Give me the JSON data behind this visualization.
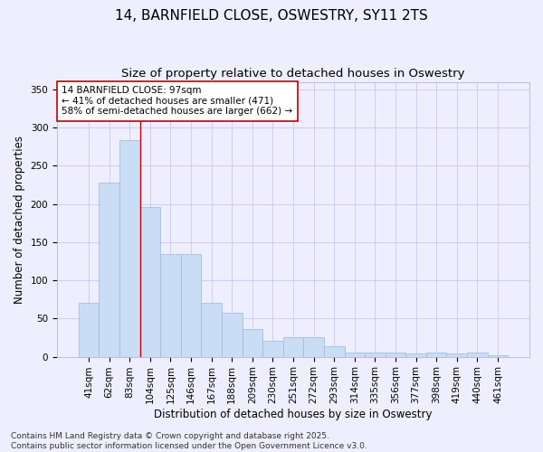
{
  "title": "14, BARNFIELD CLOSE, OSWESTRY, SY11 2TS",
  "subtitle": "Size of property relative to detached houses in Oswestry",
  "xlabel": "Distribution of detached houses by size in Oswestry",
  "ylabel": "Number of detached properties",
  "categories": [
    "41sqm",
    "62sqm",
    "83sqm",
    "104sqm",
    "125sqm",
    "146sqm",
    "167sqm",
    "188sqm",
    "209sqm",
    "230sqm",
    "251sqm",
    "272sqm",
    "293sqm",
    "314sqm",
    "335sqm",
    "356sqm",
    "377sqm",
    "398sqm",
    "419sqm",
    "440sqm",
    "461sqm"
  ],
  "values": [
    70,
    228,
    284,
    196,
    134,
    134,
    71,
    57,
    36,
    21,
    25,
    25,
    14,
    6,
    6,
    5,
    4,
    5,
    4,
    6,
    2
  ],
  "bar_color": "#c9ddf5",
  "bar_edge_color": "#9ab8dc",
  "vline_x_index": 2.5,
  "vline_color": "#c00000",
  "annotation_text": "14 BARNFIELD CLOSE: 97sqm\n← 41% of detached houses are smaller (471)\n58% of semi-detached houses are larger (662) →",
  "annotation_box_color": "#ffffff",
  "annotation_box_edge": "#c00000",
  "ylim": [
    0,
    360
  ],
  "yticks": [
    0,
    50,
    100,
    150,
    200,
    250,
    300,
    350
  ],
  "grid_color": "#c8c8f0",
  "background_color": "#eeeeff",
  "footer_text": "Contains HM Land Registry data © Crown copyright and database right 2025.\nContains public sector information licensed under the Open Government Licence v3.0.",
  "title_fontsize": 11,
  "subtitle_fontsize": 9.5,
  "axis_label_fontsize": 8.5,
  "tick_fontsize": 7.5,
  "annotation_fontsize": 7.5,
  "footer_fontsize": 6.5
}
